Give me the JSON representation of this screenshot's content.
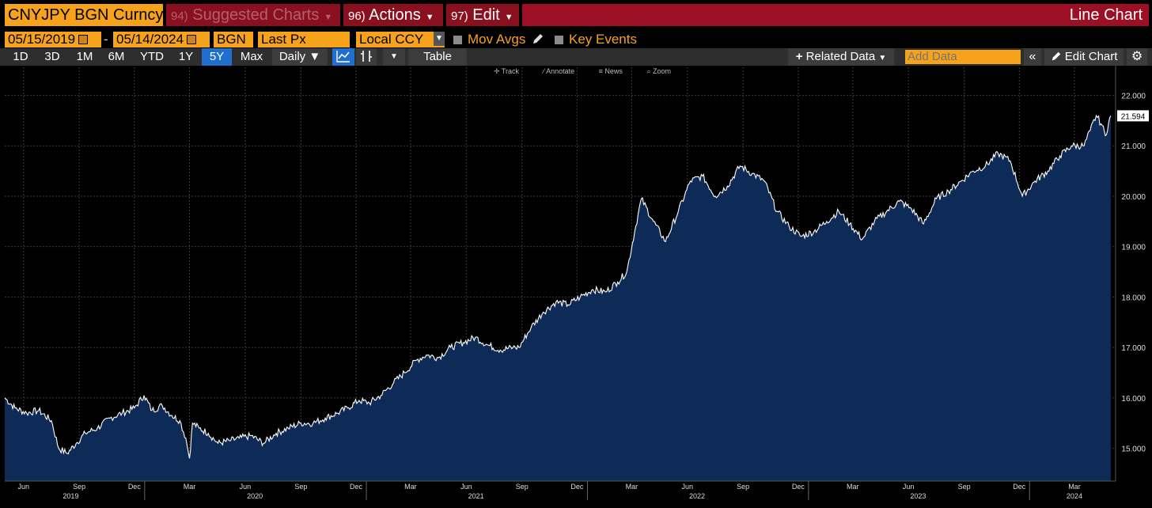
{
  "header": {
    "ticker": "CNYJPY BGN Curncy",
    "suggested_num": "94)",
    "suggested": "Suggested Charts",
    "actions_num": "96)",
    "actions": "Actions",
    "edit_num": "97)",
    "edit": "Edit",
    "chart_type": "Line Chart"
  },
  "selectors": {
    "start_date": "05/15/2019",
    "dash": "-",
    "end_date": "05/14/2024",
    "source": "BGN",
    "field": "Last Px",
    "currency": "Local CCY",
    "mov_avgs": "Mov Avgs",
    "key_events": "Key Events"
  },
  "toolbar": {
    "periods": [
      "1D",
      "3D",
      "1M",
      "6M",
      "YTD",
      "1Y",
      "5Y",
      "Max"
    ],
    "selected_period": "5Y",
    "frequency": "Daily",
    "table": "Table",
    "related_data": "Related Data",
    "add_data_placeholder": "Add Data",
    "edit_chart": "Edit Chart"
  },
  "subtools": [
    "Track",
    "Annotate",
    "News",
    "Zoom"
  ],
  "icons": {
    "calendar": "calendar-icon",
    "pencil": "pencil-icon",
    "line_chart": "line-chart-icon",
    "candlestick": "candlestick-icon",
    "collapse": "double-chevron-left-icon",
    "settings": "gear-icon"
  },
  "colors": {
    "line": "#ffffff",
    "area_fill": "#0e2a57",
    "grid": "#3a3a3a",
    "last_label_bg": "#ffffff",
    "amber": "#f7a21b",
    "title_bar": "#9c0f25"
  },
  "chart_data": {
    "type": "area",
    "x_axis_months": [
      "Jun",
      "Sep",
      "Dec",
      "Mar",
      "Jun",
      "Sep",
      "Dec",
      "Mar",
      "Jun",
      "Sep",
      "Dec",
      "Mar",
      "Jun",
      "Sep",
      "Dec",
      "Mar",
      "Jun",
      "Sep",
      "Dec",
      "Mar"
    ],
    "x_axis_years": [
      "2019",
      "2020",
      "2021",
      "2022",
      "2023",
      "2024"
    ],
    "y_ticks": [
      "15.000",
      "16.000",
      "17.000",
      "18.000",
      "19.000",
      "20.000",
      "21.000",
      "22.000"
    ],
    "ylim": [
      14.35,
      22.4
    ],
    "last_value": "21.594",
    "grid": true,
    "series": [
      {
        "x": [
          "2019-05-15",
          "2019-06-01",
          "2019-06-20",
          "2019-07-10",
          "2019-07-31",
          "2019-08-12",
          "2019-08-26",
          "2019-09-10",
          "2019-09-25",
          "2019-10-15",
          "2019-11-05",
          "2019-11-25",
          "2019-12-15",
          "2019-12-31",
          "2020-01-13",
          "2020-01-30",
          "2020-02-15",
          "2020-02-28",
          "2020-03-09",
          "2020-03-15",
          "2020-03-20",
          "2020-03-31",
          "2020-04-15",
          "2020-05-01",
          "2020-05-20",
          "2020-06-05",
          "2020-06-25",
          "2020-07-15",
          "2020-08-05",
          "2020-08-25",
          "2020-09-15",
          "2020-10-05",
          "2020-10-25",
          "2020-11-15",
          "2020-12-01",
          "2020-12-20",
          "2021-01-06",
          "2021-01-25",
          "2021-02-15",
          "2021-03-05",
          "2021-03-25",
          "2021-04-10",
          "2021-04-30",
          "2021-05-20",
          "2021-06-10",
          "2021-06-30",
          "2021-07-20",
          "2021-08-10",
          "2021-08-31",
          "2021-09-10",
          "2021-09-30",
          "2021-10-20",
          "2021-11-10",
          "2021-11-30",
          "2021-12-20",
          "2022-01-10",
          "2022-01-31",
          "2022-02-20",
          "2022-03-07",
          "2022-03-20",
          "2022-03-31",
          "2022-04-20",
          "2022-05-10",
          "2022-05-31",
          "2022-06-20",
          "2022-07-10",
          "2022-07-31",
          "2022-08-20",
          "2022-09-10",
          "2022-09-30",
          "2022-10-20",
          "2022-11-10",
          "2022-11-30",
          "2022-12-20",
          "2023-01-10",
          "2023-01-31",
          "2023-02-20",
          "2023-03-10",
          "2023-03-31",
          "2023-04-20",
          "2023-05-10",
          "2023-05-31",
          "2023-06-20",
          "2023-07-10",
          "2023-07-31",
          "2023-08-20",
          "2023-09-10",
          "2023-09-30",
          "2023-10-20",
          "2023-11-10",
          "2023-11-30",
          "2023-12-20",
          "2024-01-10",
          "2024-01-31",
          "2024-02-20",
          "2024-03-10",
          "2024-03-31",
          "2024-04-10",
          "2024-04-20",
          "2024-04-30",
          "2024-05-05",
          "2024-05-14"
        ],
        "y": [
          16.0,
          15.8,
          15.7,
          15.75,
          15.55,
          15.0,
          14.9,
          15.1,
          15.3,
          15.4,
          15.6,
          15.7,
          15.8,
          16.05,
          15.75,
          15.85,
          15.65,
          15.55,
          15.2,
          14.8,
          15.5,
          15.4,
          15.3,
          15.1,
          15.15,
          15.2,
          15.25,
          15.1,
          15.3,
          15.4,
          15.5,
          15.5,
          15.6,
          15.7,
          15.8,
          15.95,
          15.9,
          16.05,
          16.3,
          16.5,
          16.75,
          16.85,
          16.8,
          17.0,
          17.1,
          17.2,
          17.05,
          16.95,
          17.0,
          17.0,
          17.4,
          17.7,
          17.9,
          17.85,
          18.0,
          18.15,
          18.1,
          18.3,
          18.5,
          19.3,
          19.95,
          19.5,
          19.1,
          19.7,
          20.3,
          20.4,
          20.0,
          20.2,
          20.6,
          20.45,
          20.3,
          19.7,
          19.4,
          19.2,
          19.3,
          19.5,
          19.7,
          19.45,
          19.15,
          19.5,
          19.7,
          19.9,
          19.75,
          19.45,
          19.95,
          20.1,
          20.3,
          20.5,
          20.6,
          20.85,
          20.7,
          20.0,
          20.3,
          20.5,
          20.8,
          21.0,
          21.0,
          21.3,
          21.6,
          21.4,
          21.2,
          21.594
        ]
      }
    ]
  }
}
